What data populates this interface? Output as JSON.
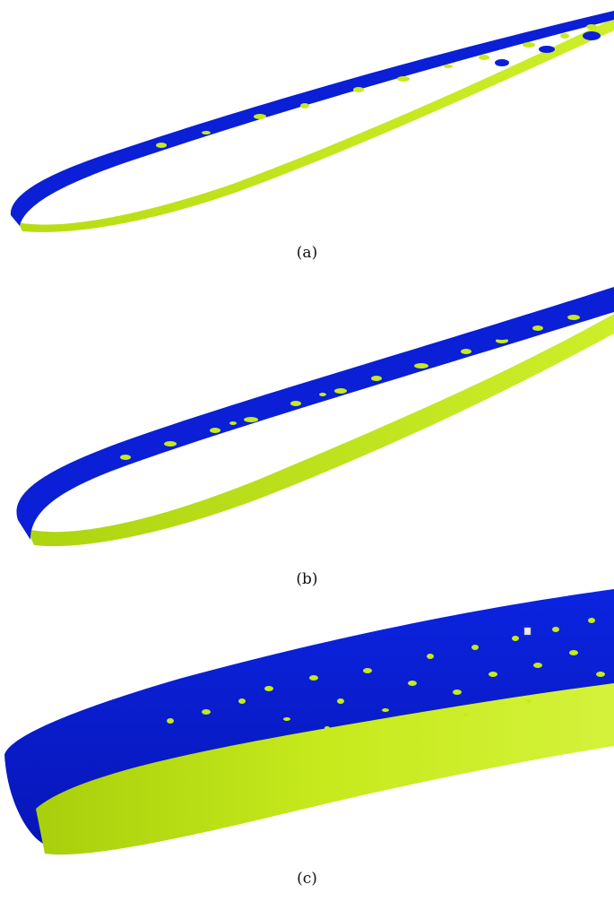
{
  "figure": {
    "panels": [
      {
        "label": "(a)"
      },
      {
        "label": "(b)"
      },
      {
        "label": "(c)"
      }
    ],
    "colors": {
      "suction_surface": "#0a1fd6",
      "pressure_surface": "#c6ea1c",
      "background": "#ffffff"
    }
  }
}
